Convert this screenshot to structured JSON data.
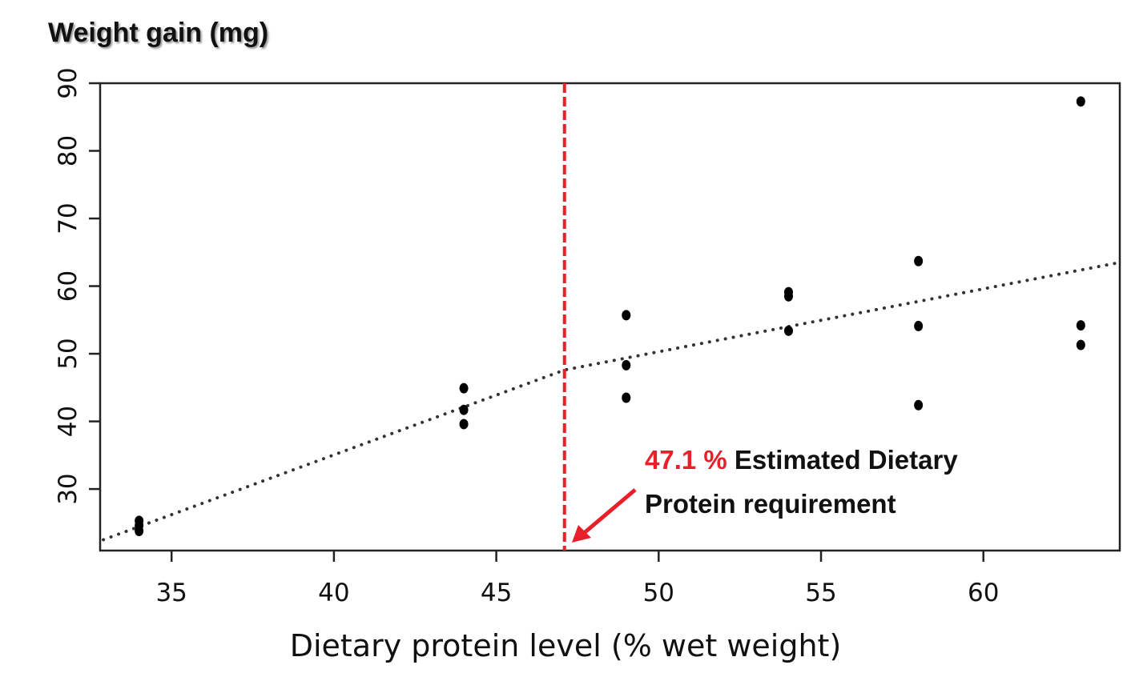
{
  "chart_data": {
    "type": "scatter",
    "title": "",
    "ylabel": "Weight gain (mg)",
    "xlabel": "Dietary protein level (% wet weight)",
    "xlim": [
      32.8,
      64.2
    ],
    "ylim": [
      20.9,
      90
    ],
    "x_ticks": [
      35,
      40,
      45,
      50,
      55,
      60
    ],
    "y_ticks": [
      30,
      40,
      50,
      60,
      70,
      80,
      90
    ],
    "grid": false,
    "points": [
      {
        "x": 34,
        "y": 25.3
      },
      {
        "x": 34,
        "y": 24.6
      },
      {
        "x": 34,
        "y": 23.8
      },
      {
        "x": 44,
        "y": 44.9
      },
      {
        "x": 44,
        "y": 41.7
      },
      {
        "x": 44,
        "y": 39.6
      },
      {
        "x": 49,
        "y": 55.7
      },
      {
        "x": 49,
        "y": 48.3
      },
      {
        "x": 49,
        "y": 43.5
      },
      {
        "x": 54,
        "y": 59.1
      },
      {
        "x": 54,
        "y": 58.5
      },
      {
        "x": 54,
        "y": 53.4
      },
      {
        "x": 58,
        "y": 63.7
      },
      {
        "x": 58,
        "y": 54.1
      },
      {
        "x": 58,
        "y": 42.4
      },
      {
        "x": 63,
        "y": 87.3
      },
      {
        "x": 63,
        "y": 54.2
      },
      {
        "x": 63,
        "y": 51.3
      }
    ],
    "fit_line": {
      "style": "dotted",
      "color": "#333333",
      "x": [
        32.9,
        47.1,
        64.2
      ],
      "y": [
        22.5,
        47.6,
        63.5
      ]
    },
    "reference_line": {
      "x": 47.1,
      "style": "dashed",
      "color": "#e8202a"
    },
    "annotation": {
      "value_text": "47.1 %",
      "line1": "Estimated Dietary",
      "line2": "Protein requirement",
      "value_color": "#e8202a",
      "arrow_color": "#e8202a"
    }
  }
}
